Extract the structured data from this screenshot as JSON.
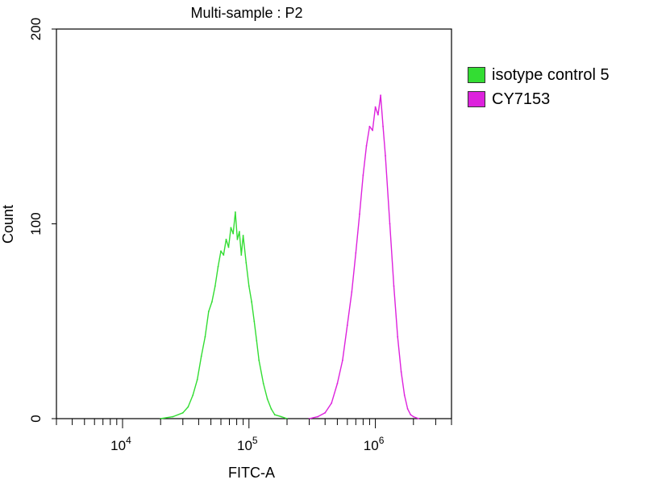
{
  "chart_data": {
    "type": "line",
    "title": "Multi-sample : P2",
    "xlabel": "FITC-A",
    "ylabel": "Count",
    "x_scale": "log",
    "xlim": [
      3000,
      4000000
    ],
    "ylim": [
      0,
      200
    ],
    "y_ticks": [
      {
        "value": 0,
        "label": "0"
      },
      {
        "value": 100,
        "label": "100"
      },
      {
        "value": 200,
        "label": "200"
      }
    ],
    "x_ticks": [
      {
        "value": 10000,
        "base": "10",
        "exp": "4"
      },
      {
        "value": 100000,
        "base": "10",
        "exp": "5"
      },
      {
        "value": 1000000,
        "base": "10",
        "exp": "6"
      }
    ],
    "legend_position": "right, outside plot",
    "grid": false,
    "series": [
      {
        "name": "isotype control 5",
        "color": "#33dd33",
        "x": [
          20000,
          25000,
          30000,
          33000,
          36000,
          39000,
          42000,
          45000,
          48000,
          51000,
          54000,
          57000,
          60000,
          63000,
          66000,
          69000,
          72000,
          75000,
          78000,
          81000,
          84000,
          87000,
          90000,
          95000,
          100000,
          105000,
          110000,
          115000,
          120000,
          130000,
          140000,
          150000,
          160000,
          180000,
          200000
        ],
        "y": [
          0,
          1,
          3,
          6,
          12,
          20,
          32,
          42,
          55,
          60,
          68,
          78,
          86,
          84,
          92,
          88,
          98,
          95,
          106,
          92,
          96,
          84,
          94,
          80,
          68,
          60,
          50,
          40,
          30,
          18,
          10,
          5,
          2,
          1,
          0
        ]
      },
      {
        "name": "CY7153",
        "color": "#dd22dd",
        "x": [
          300000,
          350000,
          400000,
          450000,
          500000,
          550000,
          600000,
          650000,
          700000,
          750000,
          800000,
          850000,
          900000,
          950000,
          1000000,
          1050000,
          1100000,
          1150000,
          1200000,
          1300000,
          1400000,
          1500000,
          1600000,
          1700000,
          1800000,
          1900000,
          2000000,
          2200000
        ],
        "y": [
          0,
          1,
          3,
          8,
          18,
          30,
          48,
          65,
          85,
          105,
          125,
          140,
          150,
          148,
          160,
          156,
          166,
          150,
          135,
          100,
          68,
          42,
          24,
          12,
          5,
          2,
          1,
          0
        ]
      }
    ]
  }
}
